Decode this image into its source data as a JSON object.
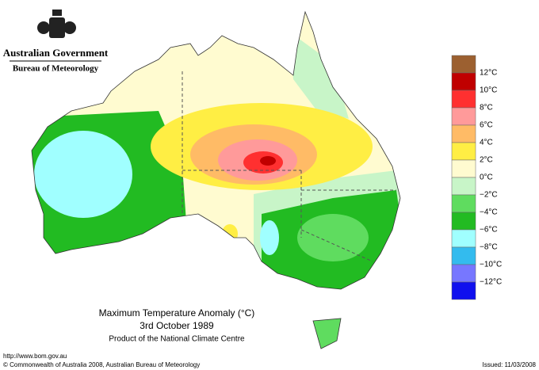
{
  "header": {
    "government": "Australian Government",
    "agency": "Bureau of Meteorology"
  },
  "map": {
    "title": "Maximum Temperature Anomaly (°C)",
    "date": "3rd October 1989",
    "product": "Product of the National Climate Centre"
  },
  "legend": {
    "colors": [
      "#9c6030",
      "#c00000",
      "#ff3030",
      "#ff9a9a",
      "#ffbb66",
      "#ffee44",
      "#fffbd0",
      "#c8f5c8",
      "#5fdc5f",
      "#22bb22",
      "#a0ffff",
      "#33bbee",
      "#7777ff",
      "#1010ee"
    ],
    "labels": [
      "12°C",
      "10°C",
      "8°C",
      "6°C",
      "4°C",
      "2°C",
      "0°C",
      "−2°C",
      "−4°C",
      "−6°C",
      "−8°C",
      "−10°C",
      "−12°C"
    ]
  },
  "footer": {
    "url": "http://www.bom.gov.au",
    "copyright": "© Commonwealth of Australia 2008, Australian Bureau of Meteorology",
    "issued": "Issued: 11/03/2008"
  }
}
